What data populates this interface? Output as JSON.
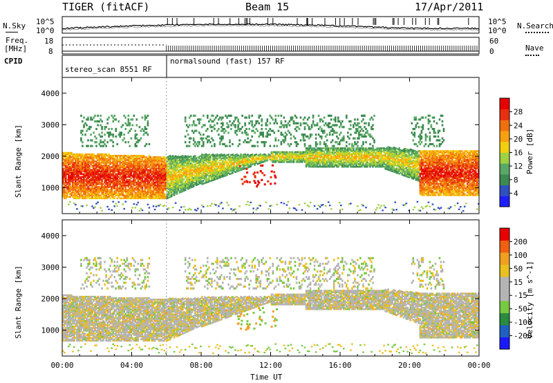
{
  "header": {
    "radar": "TIGER (fitACF)",
    "beam": "Beam 15",
    "date": "17/Apr/2011"
  },
  "summary": {
    "nsky_label": "N.Sky",
    "nsearch_label": "N.Search",
    "noise_ticks": [
      "10^5",
      "10^0"
    ],
    "noise_ticks_right": [
      "10^5",
      "10^0"
    ],
    "freq_label_line1": "Freq.",
    "freq_label_line2": "[MHz]",
    "freq_ticks": [
      "18",
      "8"
    ],
    "nave_label": "Nave",
    "nave_ticks": [
      "60",
      "0"
    ],
    "cpid_label": "CPID",
    "cpid_segments": [
      {
        "text": "stereo_scan 8551 RF",
        "start_hour": 0,
        "end_hour": 6
      },
      {
        "text": "normalsound (fast) 157 RF",
        "start_hour": 6,
        "end_hour": 24
      }
    ]
  },
  "colors": {
    "power_scale": [
      "#1e1eff",
      "#3050c0",
      "#3c8a50",
      "#5aa866",
      "#9ed040",
      "#f0d010",
      "#f8a010",
      "#f07010",
      "#e83010",
      "#e80000"
    ],
    "velocity_scale": [
      "#1a1aff",
      "#2060c0",
      "#2a8a40",
      "#78c840",
      "#b4b4b4",
      "#b4b4b4",
      "#e8c020",
      "#f0a020",
      "#f06010",
      "#e80000"
    ]
  },
  "chart_data": [
    {
      "type": "heatmap",
      "panel": "power",
      "ylabel": "Slant Range [km]",
      "xlabel": "",
      "x_range_hours": [
        0,
        24
      ],
      "ylim": [
        180,
        4500
      ],
      "yticks": [
        1000,
        2000,
        3000,
        4000
      ],
      "colorbar_label": "Power [dB]",
      "colorbar_ticks": [
        "28",
        "24",
        "20",
        "16",
        "12",
        "8",
        "4"
      ],
      "colorbar_range": [
        0,
        30
      ]
    },
    {
      "type": "heatmap",
      "panel": "velocity",
      "ylabel": "Slant Range [km]",
      "xlabel": "Time UT",
      "x_range_hours": [
        0,
        24
      ],
      "xticks": [
        "00:00",
        "04:00",
        "08:00",
        "12:00",
        "16:00",
        "20:00",
        "00:00"
      ],
      "ylim": [
        180,
        4500
      ],
      "yticks": [
        1000,
        2000,
        3000,
        4000
      ],
      "colorbar_label": "Velocity [m s^-1]",
      "colorbar_ticks": [
        "200",
        "100",
        "50",
        "15",
        "-15",
        "-50",
        "-100",
        "-200"
      ],
      "colorbar_range": [
        -250,
        250
      ]
    }
  ]
}
